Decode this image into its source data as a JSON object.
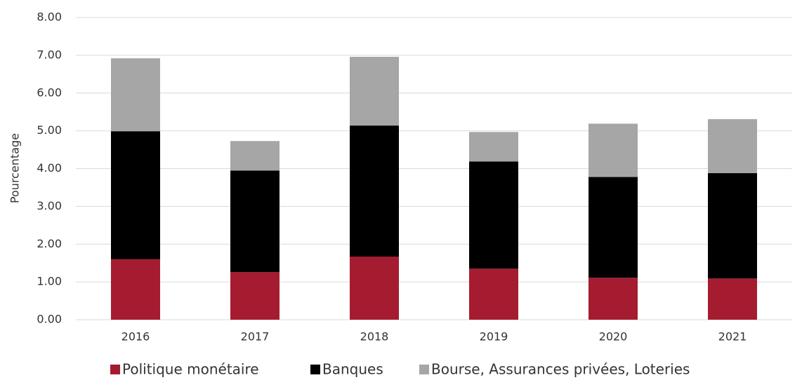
{
  "chart_data": {
    "type": "stacked_bar",
    "y_label": "Pourcentage",
    "categories": [
      "2016",
      "2017",
      "2018",
      "2019",
      "2020",
      "2021"
    ],
    "series": [
      {
        "name": "Politique monétaire",
        "color": "#a51c30",
        "values": [
          1.6,
          1.26,
          1.67,
          1.35,
          1.11,
          1.09
        ]
      },
      {
        "name": "Banques",
        "color": "#000000",
        "values": [
          3.39,
          2.69,
          3.47,
          2.84,
          2.67,
          2.79
        ]
      },
      {
        "name": "Bourse, Assurances privées, Loteries",
        "color": "#a6a6a6",
        "values": [
          1.93,
          0.78,
          1.82,
          0.78,
          1.41,
          1.43
        ]
      }
    ],
    "ylim": [
      0,
      8
    ],
    "yticks": [
      {
        "value": 0,
        "label": "0.00"
      },
      {
        "value": 1,
        "label": "1.00"
      },
      {
        "value": 2,
        "label": "2.00"
      },
      {
        "value": 3,
        "label": "3.00"
      },
      {
        "value": 4,
        "label": "4.00"
      },
      {
        "value": 5,
        "label": "5.00"
      },
      {
        "value": 6,
        "label": "6.00"
      },
      {
        "value": 7,
        "label": "7.00"
      },
      {
        "value": 8,
        "label": "8.00"
      }
    ],
    "grid": true,
    "legend": "bottom"
  }
}
